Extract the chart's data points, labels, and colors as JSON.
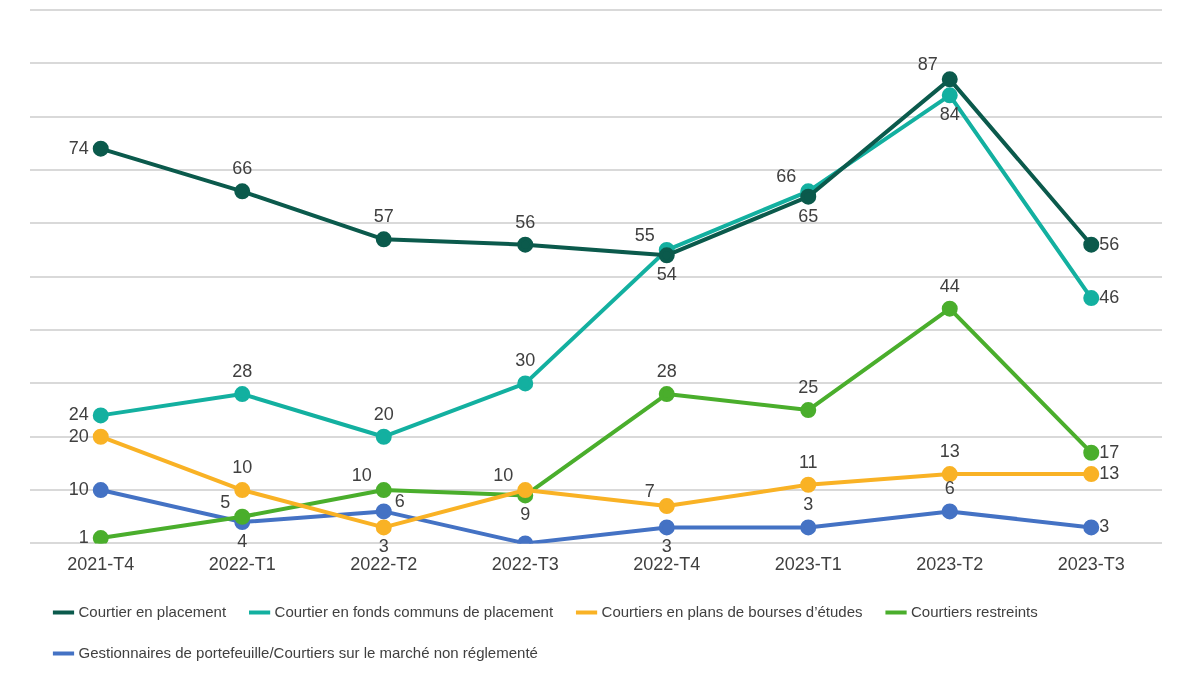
{
  "chart_data": {
    "type": "line",
    "categories": [
      "2021-T4",
      "2022-T1",
      "2022-T2",
      "2022-T3",
      "2022-T4",
      "2023-T1",
      "2023-T2",
      "2023-T3"
    ],
    "ylim": [
      0,
      100
    ],
    "yticks": [
      {
        "value": 0,
        "label": null
      },
      {
        "value": 10,
        "label": null
      },
      {
        "value": 20,
        "label": null
      },
      {
        "value": 30,
        "label": null
      },
      {
        "value": 40,
        "label": null
      },
      {
        "value": 50,
        "label": null
      },
      {
        "value": 60,
        "label": null
      },
      {
        "value": 70,
        "label": null
      },
      {
        "value": 80,
        "label": null
      },
      {
        "value": 90,
        "label": null
      },
      {
        "value": 100,
        "label": null
      }
    ],
    "tick_labels": "x",
    "grid": "y",
    "legend": "bottom",
    "marker": "circle",
    "line_style": "solid",
    "series": [
      {
        "name": "Courtier en placement",
        "color": "#0b5a4c",
        "values": [
          74,
          66,
          57,
          56,
          54,
          65,
          87,
          56
        ],
        "value_labels": [
          "74",
          "66",
          "57",
          "56",
          "54",
          "65",
          "87",
          "56"
        ]
      },
      {
        "name": "Courtier en fonds communs de placement",
        "color": "#13b0a0",
        "values": [
          24,
          28,
          20,
          30,
          55,
          66,
          84,
          46
        ],
        "value_labels": [
          "24",
          "28",
          "20",
          "30",
          "55",
          "66",
          "84",
          "46"
        ]
      },
      {
        "name": "Courtiers en plans de bourses d’études",
        "color": "#f9b225",
        "values": [
          20,
          10,
          3,
          10,
          7,
          11,
          13,
          13
        ],
        "value_labels": [
          "20",
          "10",
          "3",
          "10",
          "7",
          "11",
          "13",
          "13"
        ]
      },
      {
        "name": "Courtiers restreints",
        "color": "#4aae2c",
        "values": [
          1,
          5,
          10,
          9,
          28,
          25,
          44,
          17
        ],
        "value_labels": [
          "1",
          "5",
          "10",
          "9",
          "28",
          "25",
          "44",
          "17"
        ]
      },
      {
        "name": "Gestionnaires de portefeuille/Courtiers sur le marché non réglementé",
        "color": "#4472c4",
        "values": [
          10,
          4,
          6,
          0,
          3,
          3,
          6,
          3
        ],
        "value_labels": [
          "10",
          "4",
          "6",
          null,
          "3",
          "3",
          "6",
          "3"
        ]
      }
    ]
  }
}
